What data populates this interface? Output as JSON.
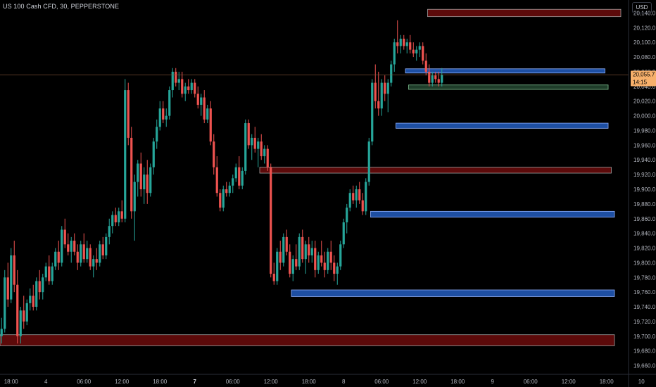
{
  "header": {
    "symbol_line": "US 100 Cash CFD, 30, PEPPERSTONE"
  },
  "currency": "USD",
  "price_label": {
    "price": "20,055.7",
    "countdown": "14:15"
  },
  "colors": {
    "background": "#000000",
    "up": "#26a69a",
    "down": "#ef5350",
    "demand_zone": "#1e4fa3",
    "supply_zone": "#5c0a0a",
    "green_zone": "#1f3d2a",
    "price_tag": "#f7b06b",
    "price_line": "#8a5a3a"
  },
  "chart_data": {
    "type": "candlestick",
    "interval": "30",
    "ylim": [
      19650,
      20150
    ],
    "y_tick_labels": [
      "20,140.0",
      "20,120.0",
      "20,100.0",
      "20,080.0",
      "20,060.0",
      "20,040.0",
      "20,020.0",
      "20,000.0",
      "19,980.0",
      "19,960.0",
      "19,940.0",
      "19,920.0",
      "19,900.0",
      "19,880.0",
      "19,860.0",
      "19,840.0",
      "19,820.0",
      "19,800.0",
      "19,780.0",
      "19,760.0",
      "19,740.0",
      "19,720.0",
      "19,700.0",
      "19,680.0",
      "19,660.0"
    ],
    "y_tick_values": [
      20140,
      20120,
      20100,
      20080,
      20060,
      20040,
      20020,
      20000,
      19980,
      19960,
      19940,
      19920,
      19900,
      19880,
      19860,
      19840,
      19820,
      19800,
      19780,
      19760,
      19740,
      19720,
      19700,
      19680,
      19660
    ],
    "x_tick_labels": [
      "18:00",
      "4",
      "06:00",
      "12:00",
      "18:00",
      "7",
      "06:00",
      "12:00",
      "18:00",
      "8",
      "06:00",
      "12:00",
      "18:00",
      "9",
      "06:00",
      "12:00",
      "18:00",
      "10"
    ],
    "x_tick_bars": [
      3,
      14,
      26,
      38,
      50,
      61,
      73,
      85,
      97,
      108,
      120,
      132,
      144,
      155,
      167,
      179,
      191,
      202
    ],
    "x_tick_bold": [
      false,
      false,
      false,
      false,
      false,
      true,
      false,
      false,
      false,
      false,
      false,
      false,
      false,
      false,
      false,
      false,
      false,
      false
    ],
    "last_price": 20055.7,
    "ohlc": [
      [
        19700,
        19725,
        19690,
        19710
      ],
      [
        19710,
        19790,
        19705,
        19780
      ],
      [
        19780,
        19800,
        19740,
        19750
      ],
      [
        19750,
        19820,
        19745,
        19810
      ],
      [
        19810,
        19830,
        19760,
        19770
      ],
      [
        19770,
        19790,
        19690,
        19700
      ],
      [
        19700,
        19740,
        19690,
        19735
      ],
      [
        19735,
        19755,
        19710,
        19720
      ],
      [
        19720,
        19750,
        19715,
        19745
      ],
      [
        19745,
        19765,
        19735,
        19755
      ],
      [
        19755,
        19770,
        19735,
        19740
      ],
      [
        19740,
        19780,
        19735,
        19775
      ],
      [
        19775,
        19790,
        19750,
        19760
      ],
      [
        19760,
        19785,
        19750,
        19780
      ],
      [
        19780,
        19800,
        19775,
        19795
      ],
      [
        19795,
        19810,
        19770,
        19775
      ],
      [
        19775,
        19800,
        19770,
        19795
      ],
      [
        19795,
        19820,
        19790,
        19815
      ],
      [
        19815,
        19830,
        19790,
        19800
      ],
      [
        19800,
        19850,
        19795,
        19845
      ],
      [
        19845,
        19860,
        19820,
        19825
      ],
      [
        19825,
        19840,
        19810,
        19815
      ],
      [
        19815,
        19835,
        19800,
        19830
      ],
      [
        19830,
        19840,
        19810,
        19815
      ],
      [
        19815,
        19825,
        19790,
        19800
      ],
      [
        19800,
        19830,
        19795,
        19825
      ],
      [
        19825,
        19840,
        19800,
        19805
      ],
      [
        19805,
        19830,
        19800,
        19820
      ],
      [
        19820,
        19825,
        19790,
        19795
      ],
      [
        19795,
        19810,
        19780,
        19805
      ],
      [
        19805,
        19820,
        19790,
        19800
      ],
      [
        19800,
        19830,
        19795,
        19825
      ],
      [
        19825,
        19835,
        19805,
        19810
      ],
      [
        19810,
        19840,
        19805,
        19835
      ],
      [
        19835,
        19860,
        19825,
        19850
      ],
      [
        19850,
        19870,
        19840,
        19865
      ],
      [
        19865,
        19875,
        19850,
        19855
      ],
      [
        19855,
        19875,
        19850,
        19870
      ],
      [
        19870,
        19885,
        19855,
        19860
      ],
      [
        19860,
        20050,
        19855,
        20035
      ],
      [
        20035,
        20045,
        19960,
        19970
      ],
      [
        19970,
        19985,
        19860,
        19870
      ],
      [
        19870,
        19920,
        19830,
        19910
      ],
      [
        19910,
        19940,
        19890,
        19935
      ],
      [
        19935,
        19950,
        19890,
        19900
      ],
      [
        19900,
        19930,
        19880,
        19920
      ],
      [
        19920,
        19940,
        19880,
        19895
      ],
      [
        19895,
        19935,
        19890,
        19930
      ],
      [
        19930,
        19970,
        19920,
        19965
      ],
      [
        19965,
        19995,
        19955,
        19985
      ],
      [
        19985,
        20020,
        19980,
        20010
      ],
      [
        20010,
        20020,
        19990,
        19995
      ],
      [
        19995,
        20010,
        19985,
        20000
      ],
      [
        20000,
        20040,
        19995,
        20035
      ],
      [
        20035,
        20065,
        20025,
        20060
      ],
      [
        20060,
        20065,
        20040,
        20045
      ],
      [
        20045,
        20060,
        20035,
        20050
      ],
      [
        20050,
        20060,
        20025,
        20030
      ],
      [
        20030,
        20045,
        20020,
        20040
      ],
      [
        20040,
        20050,
        20030,
        20035
      ],
      [
        20035,
        20050,
        20030,
        20045
      ],
      [
        20045,
        20050,
        20025,
        20030
      ],
      [
        20030,
        20040,
        20010,
        20015
      ],
      [
        20015,
        20030,
        20000,
        20025
      ],
      [
        20025,
        20035,
        19990,
        19995
      ],
      [
        19995,
        20015,
        19990,
        20010
      ],
      [
        20010,
        20020,
        19960,
        19965
      ],
      [
        19965,
        19975,
        19920,
        19930
      ],
      [
        19930,
        19945,
        19890,
        19895
      ],
      [
        19895,
        19900,
        19870,
        19875
      ],
      [
        19875,
        19905,
        19870,
        19900
      ],
      [
        19900,
        19910,
        19890,
        19895
      ],
      [
        19895,
        19910,
        19890,
        19905
      ],
      [
        19905,
        19920,
        19895,
        19915
      ],
      [
        19915,
        19935,
        19910,
        19930
      ],
      [
        19930,
        19945,
        19900,
        19905
      ],
      [
        19905,
        19930,
        19900,
        19925
      ],
      [
        19925,
        19995,
        19920,
        19990
      ],
      [
        19990,
        19995,
        19955,
        19960
      ],
      [
        19960,
        19975,
        19940,
        19970
      ],
      [
        19970,
        19985,
        19950,
        19955
      ],
      [
        19955,
        19970,
        19930,
        19965
      ],
      [
        19965,
        19975,
        19940,
        19945
      ],
      [
        19945,
        19960,
        19935,
        19955
      ],
      [
        19955,
        19960,
        19925,
        19930
      ],
      [
        19930,
        19935,
        19780,
        19785
      ],
      [
        19785,
        19800,
        19770,
        19775
      ],
      [
        19775,
        19820,
        19770,
        19815
      ],
      [
        19815,
        19830,
        19790,
        19800
      ],
      [
        19800,
        19840,
        19795,
        19835
      ],
      [
        19835,
        19845,
        19810,
        19815
      ],
      [
        19815,
        19825,
        19780,
        19785
      ],
      [
        19785,
        19810,
        19775,
        19805
      ],
      [
        19805,
        19825,
        19790,
        19795
      ],
      [
        19795,
        19840,
        19790,
        19835
      ],
      [
        19835,
        19845,
        19800,
        19805
      ],
      [
        19805,
        19830,
        19785,
        19825
      ],
      [
        19825,
        19835,
        19800,
        19810
      ],
      [
        19810,
        19830,
        19800,
        19820
      ],
      [
        19820,
        19830,
        19780,
        19790
      ],
      [
        19790,
        19815,
        19785,
        19810
      ],
      [
        19810,
        19830,
        19795,
        19800
      ],
      [
        19800,
        19815,
        19780,
        19790
      ],
      [
        19790,
        19820,
        19785,
        19815
      ],
      [
        19815,
        19830,
        19790,
        19800
      ],
      [
        19800,
        19810,
        19775,
        19785
      ],
      [
        19785,
        19800,
        19770,
        19795
      ],
      [
        19795,
        19830,
        19790,
        19825
      ],
      [
        19825,
        19860,
        19820,
        19855
      ],
      [
        19855,
        19880,
        19840,
        19875
      ],
      [
        19875,
        19900,
        19870,
        19895
      ],
      [
        19895,
        19905,
        19880,
        19885
      ],
      [
        19885,
        19905,
        19875,
        19900
      ],
      [
        19900,
        19910,
        19880,
        19885
      ],
      [
        19885,
        19895,
        19865,
        19870
      ],
      [
        19870,
        19915,
        19865,
        19910
      ],
      [
        19910,
        19970,
        19905,
        19965
      ],
      [
        19965,
        20050,
        19960,
        20045
      ],
      [
        20045,
        20070,
        20010,
        20020
      ],
      [
        20020,
        20060,
        20000,
        20010
      ],
      [
        20010,
        20050,
        20000,
        20045
      ],
      [
        20045,
        20055,
        20020,
        20030
      ],
      [
        20030,
        20050,
        20005,
        20045
      ],
      [
        20045,
        20075,
        20040,
        20070
      ],
      [
        20070,
        20105,
        20060,
        20100
      ],
      [
        20100,
        20130,
        20085,
        20095
      ],
      [
        20095,
        20110,
        20085,
        20105
      ],
      [
        20105,
        20110,
        20090,
        20095
      ],
      [
        20095,
        20105,
        20085,
        20100
      ],
      [
        20100,
        20110,
        20085,
        20090
      ],
      [
        20090,
        20100,
        20080,
        20085
      ],
      [
        20085,
        20095,
        20075,
        20090
      ],
      [
        20090,
        20100,
        20080,
        20095
      ],
      [
        20095,
        20100,
        20070,
        20075
      ],
      [
        20075,
        20085,
        20055,
        20060
      ],
      [
        20060,
        20070,
        20040,
        20045
      ],
      [
        20045,
        20060,
        20040,
        20055
      ],
      [
        20055,
        20060,
        20045,
        20050
      ],
      [
        20050,
        20060,
        20040,
        20045
      ],
      [
        20045,
        20065,
        20040,
        20055.7
      ]
    ],
    "zones": [
      {
        "kind": "supply",
        "top": 20145,
        "bottom": 20135,
        "from_bar": 135,
        "to_bar": 196
      },
      {
        "kind": "demand",
        "top": 20064,
        "bottom": 20060,
        "from_bar": 128,
        "to_bar": 191
      },
      {
        "kind": "green",
        "top": 20042,
        "bottom": 20036,
        "from_bar": 129,
        "to_bar": 192
      },
      {
        "kind": "demand",
        "top": 19990,
        "bottom": 19983,
        "from_bar": 125,
        "to_bar": 192
      },
      {
        "kind": "supply",
        "top": 19930,
        "bottom": 19922,
        "from_bar": 82,
        "to_bar": 193
      },
      {
        "kind": "demand",
        "top": 19870,
        "bottom": 19862,
        "from_bar": 117,
        "to_bar": 194
      },
      {
        "kind": "demand",
        "top": 19763,
        "bottom": 19754,
        "from_bar": 92,
        "to_bar": 194
      },
      {
        "kind": "supply",
        "top": 19702,
        "bottom": 19687,
        "from_bar": 0,
        "to_bar": 194
      }
    ]
  }
}
